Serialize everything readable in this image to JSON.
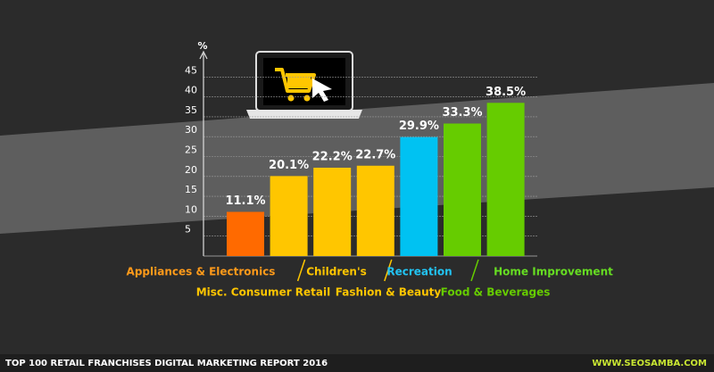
{
  "chart_data": {
    "type": "bar",
    "y_label": "%",
    "categories": [
      "Appliances & Electronics",
      "Misc. Consumer Retail",
      "Children's",
      "Fashion & Beauty",
      "Recreation",
      "Food & Beverages",
      "Home Improvement"
    ],
    "values": [
      11.1,
      20.1,
      22.2,
      22.7,
      29.9,
      33.3,
      38.5
    ],
    "value_labels": [
      "11.1%",
      "20.1%",
      "22.2%",
      "22.7%",
      "29.9%",
      "33.3%",
      "38.5%"
    ],
    "colors": [
      "#ff6a00",
      "#ffc600",
      "#ffc600",
      "#ffc600",
      "#00c2f2",
      "#66cc00",
      "#66cc00"
    ],
    "label_colors": [
      "#ff9a1a",
      "#ffc600",
      "#ffc600",
      "#ffc600",
      "#22c4f4",
      "#66cc00",
      "#66dd22"
    ],
    "ylim": [
      0,
      50
    ],
    "yticks": [
      5,
      10,
      15,
      20,
      25,
      30,
      35,
      40,
      45
    ],
    "grid": true
  },
  "footer": {
    "left": "TOP 100 RETAIL FRANCHISES DIGITAL MARKETING REPORT 2016",
    "right": "WWW.SEOSAMBA.COM"
  }
}
